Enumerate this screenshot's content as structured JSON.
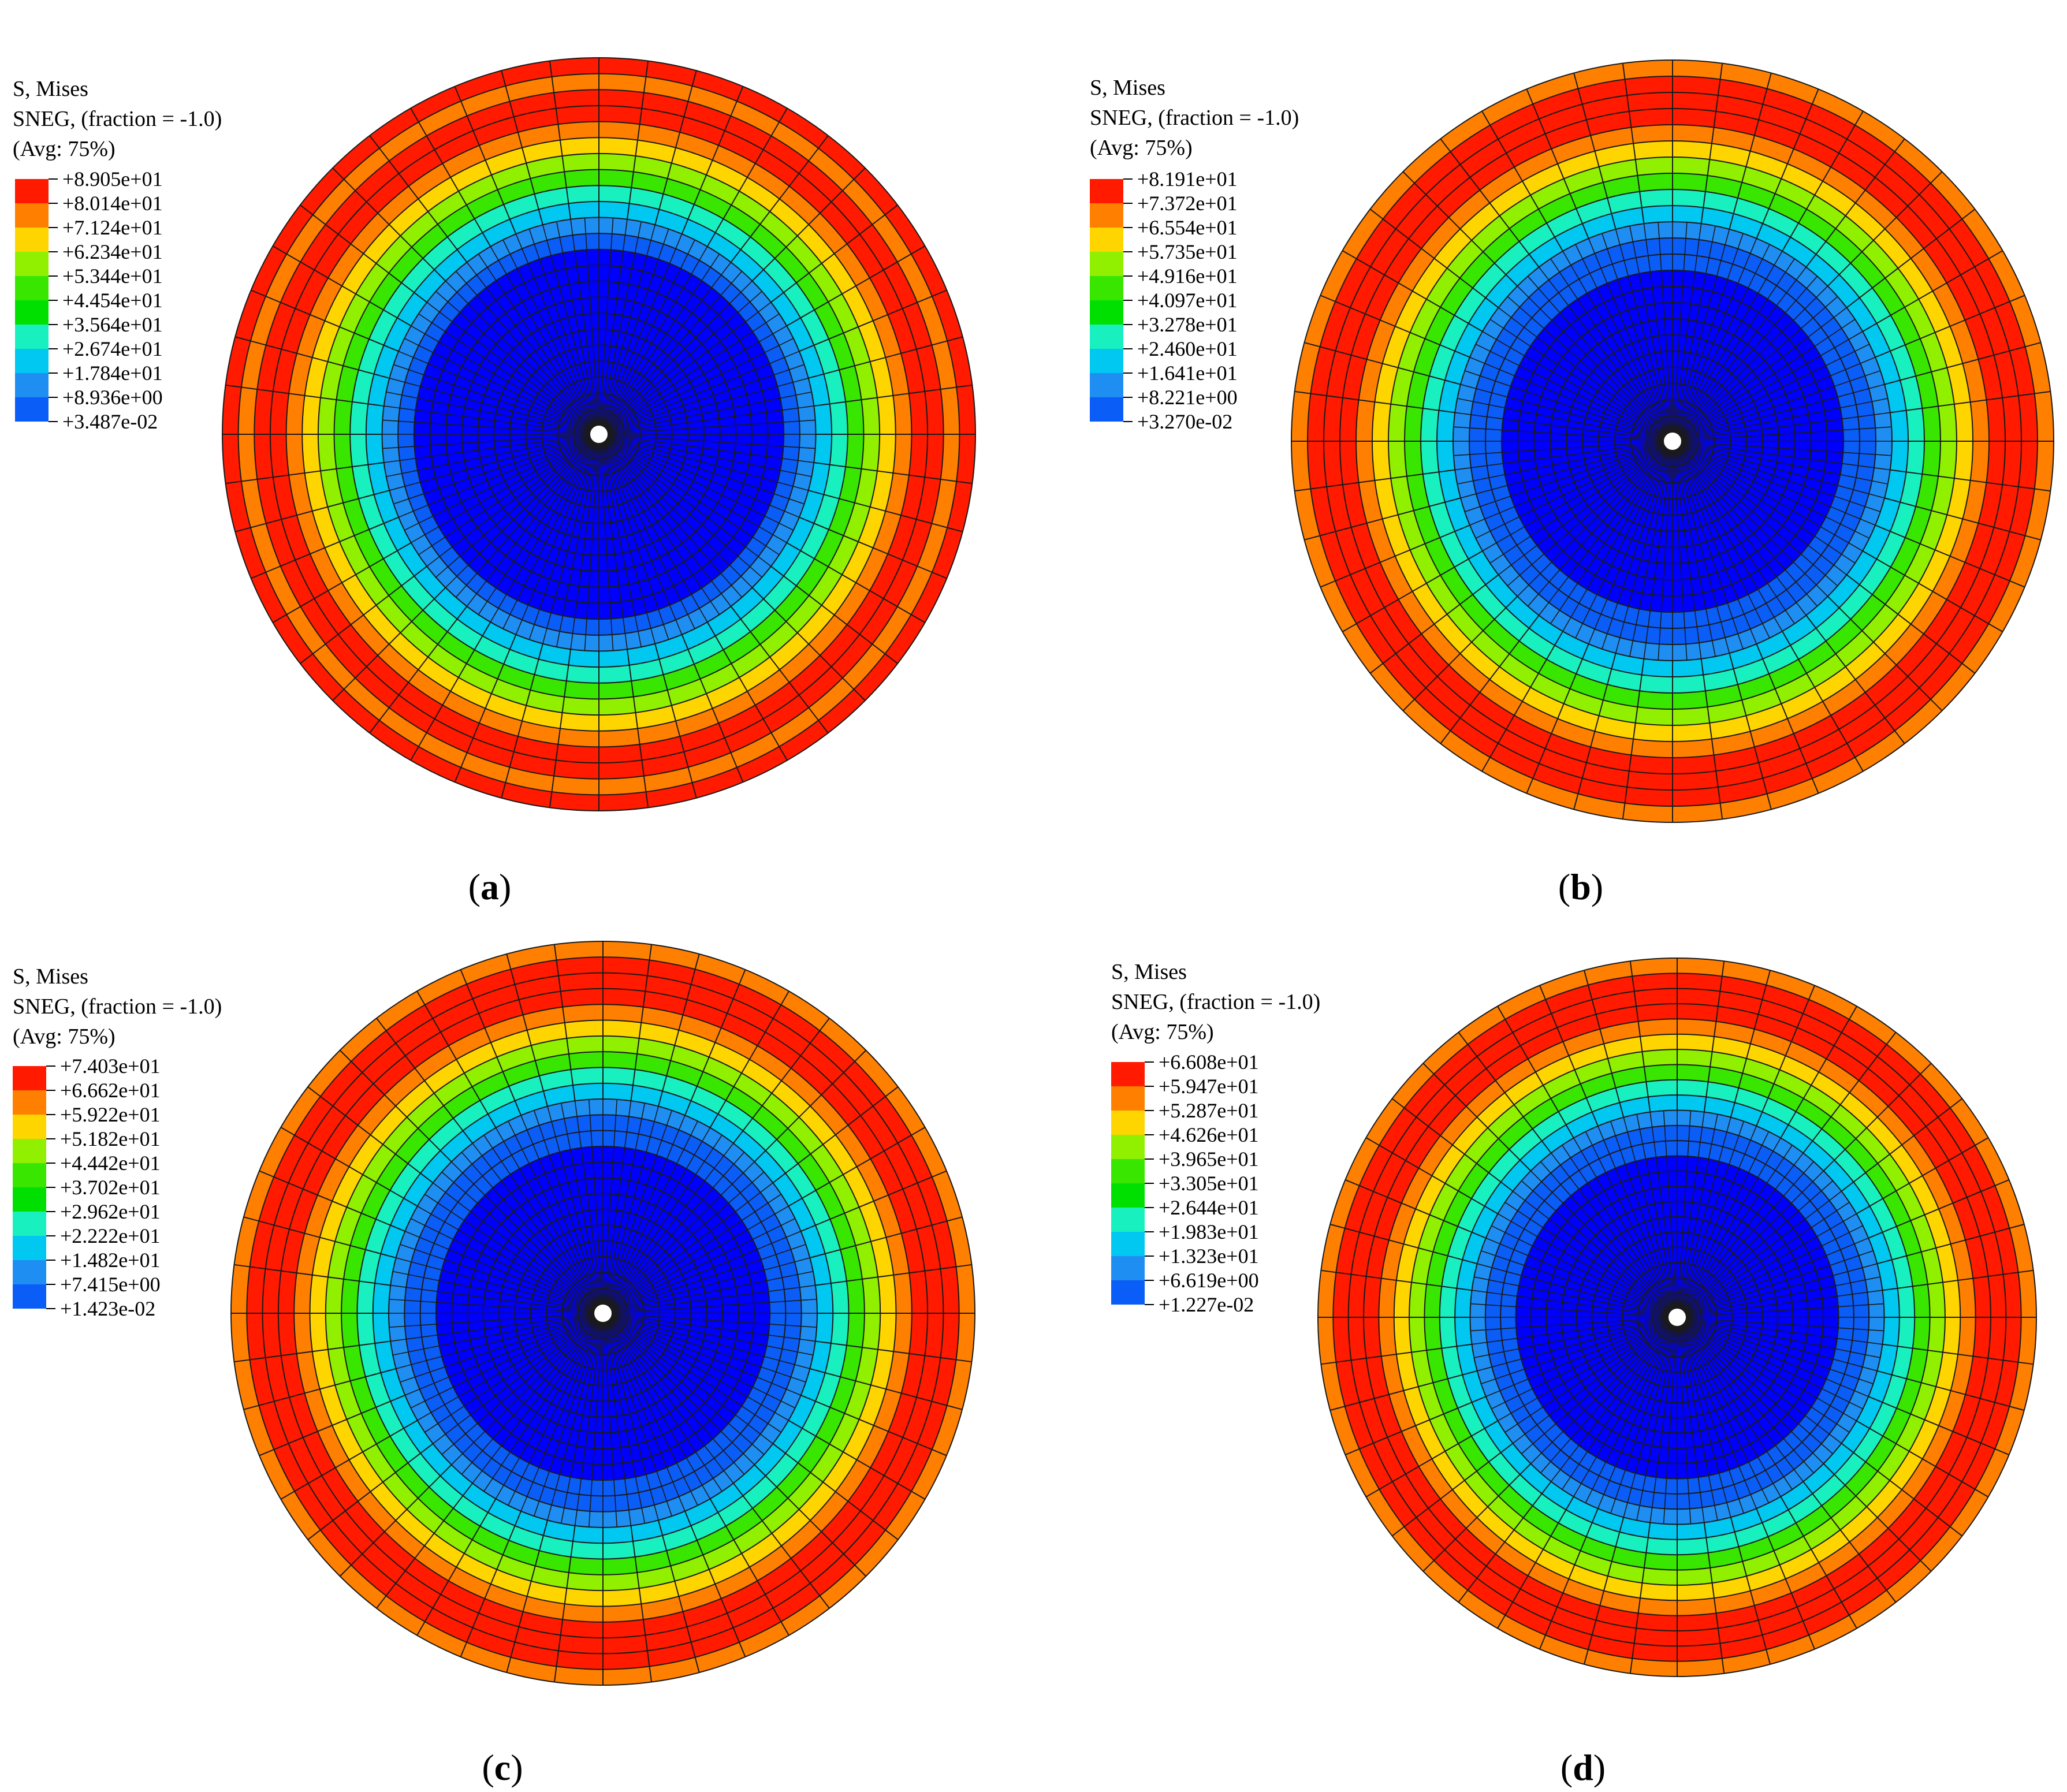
{
  "colormap": [
    "#0000ff",
    "#0b5df7",
    "#1f8ef2",
    "#00c8f0",
    "#19f0c0",
    "#00e000",
    "#39e600",
    "#90f000",
    "#ffd500",
    "#ff8000",
    "#ff1a00"
  ],
  "edge_color": "#1a1a1a",
  "panels": [
    {
      "id": "a",
      "caption_prefix": "(",
      "caption_letter": "a",
      "caption_suffix": ")",
      "legend": {
        "title": "S, Mises",
        "subtitle": "SNEG, (fraction = -1.0)",
        "avg": "(Avg: 75%)",
        "labels": [
          "+8.905e+01",
          "+8.014e+01",
          "+7.124e+01",
          "+6.234e+01",
          "+5.344e+01",
          "+4.454e+01",
          "+3.564e+01",
          "+2.674e+01",
          "+1.784e+01",
          "+8.936e+00",
          "+3.487e-02"
        ]
      },
      "bands": [
        10,
        9,
        10,
        10,
        9,
        8,
        7,
        6,
        4,
        3,
        2,
        1,
        0,
        0,
        0,
        0,
        0,
        0,
        0,
        0,
        0,
        0,
        0
      ]
    },
    {
      "id": "b",
      "caption_prefix": "(",
      "caption_letter": "b",
      "caption_suffix": ")",
      "legend": {
        "title": "S, Mises",
        "subtitle": "SNEG, (fraction = -1.0)",
        "avg": "(Avg: 75%)",
        "labels": [
          "+8.191e+01",
          "+7.372e+01",
          "+6.554e+01",
          "+5.735e+01",
          "+4.916e+01",
          "+4.097e+01",
          "+3.278e+01",
          "+2.460e+01",
          "+1.641e+01",
          "+8.221e+00",
          "+3.270e-02"
        ]
      },
      "bands": [
        9,
        10,
        10,
        10,
        9,
        8,
        7,
        6,
        4,
        3,
        2,
        1,
        1,
        0,
        0,
        0,
        0,
        0,
        0,
        0,
        0,
        0,
        0
      ]
    },
    {
      "id": "c",
      "caption_prefix": "(",
      "caption_letter": "c",
      "caption_suffix": ")",
      "legend": {
        "title": "S, Mises",
        "subtitle": "SNEG, (fraction = -1.0)",
        "avg": "(Avg: 75%)",
        "labels": [
          "+7.403e+01",
          "+6.662e+01",
          "+5.922e+01",
          "+5.182e+01",
          "+4.442e+01",
          "+3.702e+01",
          "+2.962e+01",
          "+2.222e+01",
          "+1.482e+01",
          "+7.415e+00",
          "+1.423e-02"
        ]
      },
      "bands": [
        9,
        10,
        10,
        10,
        9,
        8,
        7,
        6,
        4,
        3,
        2,
        1,
        1,
        0,
        0,
        0,
        0,
        0,
        0,
        0,
        0,
        0,
        0
      ]
    },
    {
      "id": "d",
      "caption_prefix": "(",
      "caption_letter": "d",
      "caption_suffix": ")",
      "legend": {
        "title": "S, Mises",
        "subtitle": "SNEG, (fraction = -1.0)",
        "avg": "(Avg: 75%)",
        "labels": [
          "+6.608e+01",
          "+5.947e+01",
          "+5.287e+01",
          "+4.626e+01",
          "+3.965e+01",
          "+3.305e+01",
          "+2.644e+01",
          "+1.983e+01",
          "+1.323e+01",
          "+6.619e+00",
          "+1.227e-02"
        ]
      },
      "bands": [
        9,
        10,
        10,
        10,
        9,
        8,
        7,
        6,
        4,
        3,
        2,
        1,
        1,
        0,
        0,
        0,
        0,
        0,
        0,
        0,
        0,
        0,
        0
      ]
    }
  ]
}
